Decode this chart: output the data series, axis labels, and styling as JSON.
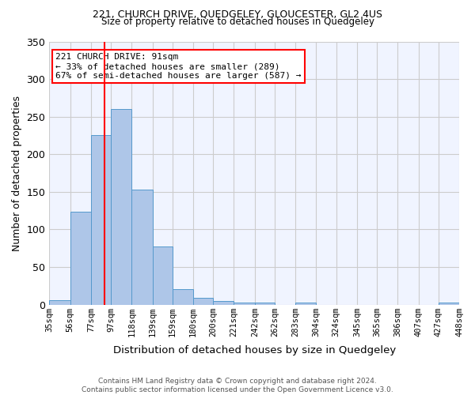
{
  "title1": "221, CHURCH DRIVE, QUEDGELEY, GLOUCESTER, GL2 4US",
  "title2": "Size of property relative to detached houses in Quedgeley",
  "xlabel": "Distribution of detached houses by size in Quedgeley",
  "ylabel": "Number of detached properties",
  "bin_labels": [
    "35sqm",
    "56sqm",
    "77sqm",
    "97sqm",
    "118sqm",
    "139sqm",
    "159sqm",
    "180sqm",
    "200sqm",
    "221sqm",
    "242sqm",
    "262sqm",
    "283sqm",
    "304sqm",
    "324sqm",
    "345sqm",
    "365sqm",
    "386sqm",
    "407sqm",
    "427sqm",
    "448sqm"
  ],
  "bar_values": [
    6,
    124,
    225,
    260,
    153,
    77,
    21,
    9,
    5,
    3,
    3,
    0,
    3,
    0,
    0,
    0,
    0,
    0,
    0,
    3,
    0
  ],
  "bar_color": "#aec6e8",
  "bar_edge_color": "#5599cc",
  "vline_x": 91,
  "vline_color": "red",
  "annotation_text": "221 CHURCH DRIVE: 91sqm\n← 33% of detached houses are smaller (289)\n67% of semi-detached houses are larger (587) →",
  "annotation_box_color": "white",
  "annotation_box_edge": "red",
  "ylim": [
    0,
    350
  ],
  "yticks": [
    0,
    50,
    100,
    150,
    200,
    250,
    300,
    350
  ],
  "footnote": "Contains HM Land Registry data © Crown copyright and database right 2024.\nContains public sector information licensed under the Open Government Licence v3.0.",
  "bg_color": "#f0f4ff",
  "grid_color": "#cccccc",
  "bin_edges": [
    35,
    56,
    77,
    97,
    118,
    139,
    159,
    180,
    200,
    221,
    242,
    262,
    283,
    304,
    324,
    345,
    365,
    386,
    407,
    427,
    448
  ]
}
